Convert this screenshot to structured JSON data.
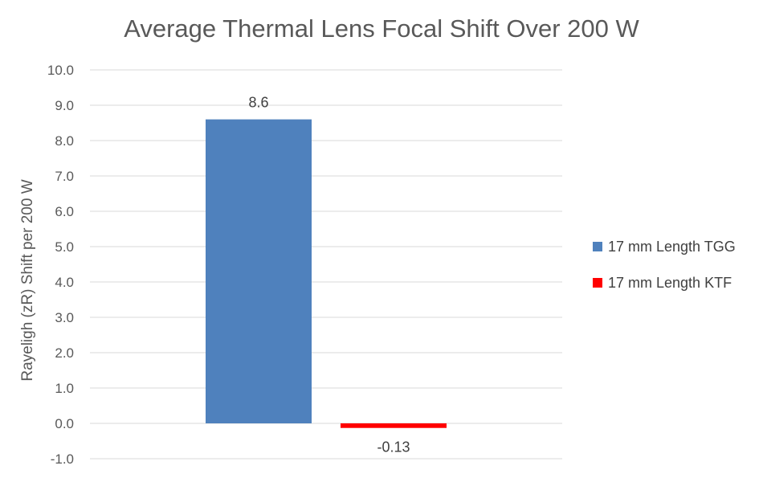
{
  "chart_data": {
    "type": "bar",
    "title": "Average Thermal Lens Focal Shift Over 200 W",
    "xlabel": "",
    "ylabel": "Rayeligh (zR) Shift per 200 W",
    "ylim": [
      -1.0,
      10.0
    ],
    "yticks": [
      -1.0,
      0.0,
      1.0,
      2.0,
      3.0,
      4.0,
      5.0,
      6.0,
      7.0,
      8.0,
      9.0,
      10.0
    ],
    "ytick_labels": [
      "-1.0",
      "0.0",
      "1.0",
      "2.0",
      "3.0",
      "4.0",
      "5.0",
      "6.0",
      "7.0",
      "8.0",
      "9.0",
      "10.0"
    ],
    "grid": true,
    "legend_position": "right",
    "series": [
      {
        "name": "17 mm Length TGG",
        "values": [
          8.6
        ],
        "data_labels": [
          "8.6"
        ],
        "color": "#4F81BD"
      },
      {
        "name": "17 mm Length KTF",
        "values": [
          -0.13
        ],
        "data_labels": [
          "-0.13"
        ],
        "color": "#FF0000"
      }
    ]
  }
}
